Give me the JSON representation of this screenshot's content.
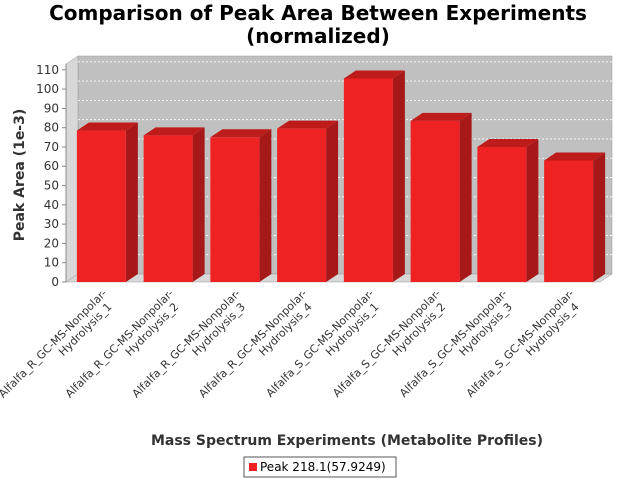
{
  "chart_data": {
    "type": "bar",
    "title": "Comparison of Peak Area Between Experiments",
    "subtitle": "(normalized)",
    "xlabel": "Mass Spectrum Experiments (Metabolite Profiles)",
    "ylabel": "Peak Area (1e-3)",
    "ylim": [
      0,
      113
    ],
    "yticks": [
      0,
      10,
      20,
      30,
      40,
      50,
      60,
      70,
      80,
      90,
      100,
      110
    ],
    "grid": true,
    "legend_position": "bottom",
    "categories": [
      [
        "Alfalfa_R_GC-MS-Nonpolar-",
        "Hydrolysis_1"
      ],
      [
        "Alfalfa_R_GC-MS-Nonpolar-",
        "Hydrolysis_2"
      ],
      [
        "Alfalfa_R_GC-MS-Nonpolar-",
        "Hydrolysis_3"
      ],
      [
        "Alfalfa_R_GC-MS-Nonpolar-",
        "Hydrolysis_4"
      ],
      [
        "Alfalfa_S_GC-MS-Nonpolar-",
        "Hydrolysis_1"
      ],
      [
        "Alfalfa_S_GC-MS-Nonpolar-",
        "Hydrolysis_2"
      ],
      [
        "Alfalfa_S_GC-MS-Nonpolar-",
        "Hydrolysis_3"
      ],
      [
        "Alfalfa_S_GC-MS-Nonpolar-",
        "Hydrolysis_4"
      ]
    ],
    "series": [
      {
        "name": "Peak 218.1(57.9249)",
        "color": "#ee2222",
        "values": [
          78.5,
          76,
          75,
          79.5,
          105.5,
          83.5,
          70,
          63
        ]
      }
    ]
  }
}
